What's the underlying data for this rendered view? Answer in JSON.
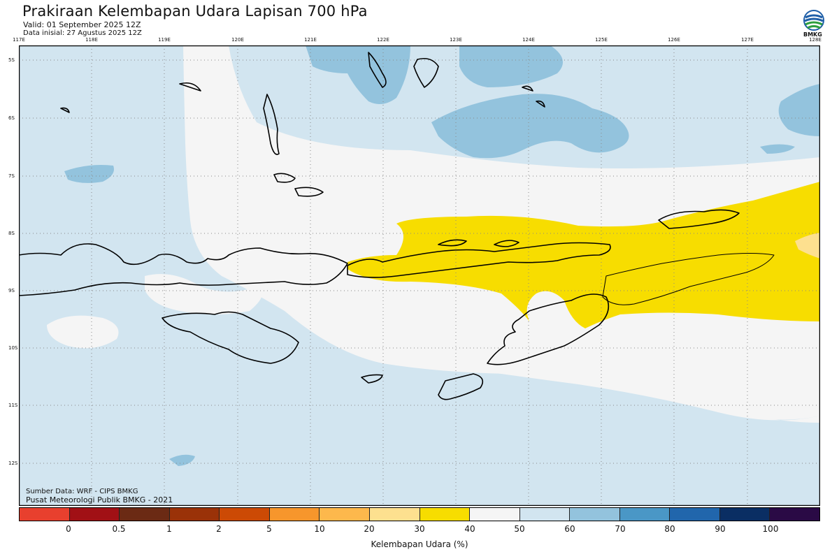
{
  "header": {
    "title": "Prakiraan Kelembapan Udara Lapisan 700 hPa",
    "valid": "Valid: 01 September 2025 12Z",
    "initial": "Data inisial: 27 Agustus 2025 12Z",
    "logo_text": "BMKG"
  },
  "axes": {
    "lon_labels": [
      "117E",
      "118E",
      "119E",
      "120E",
      "121E",
      "122E",
      "123E",
      "124E",
      "125E",
      "126E",
      "127E",
      "128E"
    ],
    "lat_labels": [
      "5S",
      "6S",
      "7S",
      "8S",
      "9S",
      "10S",
      "11S",
      "12S"
    ]
  },
  "credits": {
    "source": "Sumber Data: WRF - CIPS BMKG",
    "center": "Pusat Meteorologi Publik BMKG - 2021"
  },
  "legend": {
    "title": "Kelembapan Udara (%)",
    "colors": [
      "#e8402e",
      "#a11015",
      "#6b2a14",
      "#9a3208",
      "#cc4a05",
      "#f7962c",
      "#fdb84c",
      "#fde08f",
      "#f7dd00",
      "#f5f5f5",
      "#d2e5f0",
      "#93c3dd",
      "#4a97c6",
      "#2166ac",
      "#0a2e63",
      "#2a0a45"
    ],
    "tick_labels": [
      "0",
      "0.5",
      "1",
      "2",
      "5",
      "10",
      "20",
      "30",
      "40",
      "50",
      "60",
      "70",
      "80",
      "90",
      "100"
    ]
  },
  "map_colors": {
    "dry_yellow": "#f7dd00",
    "near_dry": "#fde08f",
    "neutral": "#f5f5f5",
    "light_blue": "#d2e5f0",
    "mid_blue": "#93c3dd"
  }
}
